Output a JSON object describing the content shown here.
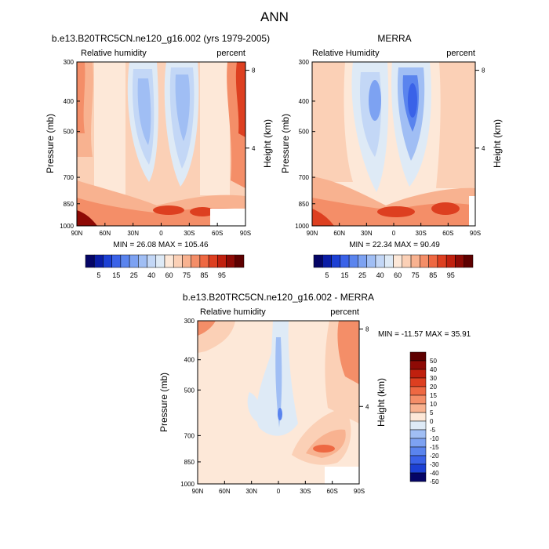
{
  "figure_title": "ANN",
  "chart_data": [
    {
      "type": "heatmap",
      "id": "model",
      "title": "b.e13.B20TRC5CN.ne120_g16.002 (yrs 1979-2005)",
      "left_label": "Relative humidity",
      "right_label": "percent",
      "xlabel": "",
      "ylabel": "Pressure (mb)",
      "y2label": "Height (km)",
      "x_ticks": [
        "90N",
        "60N",
        "30N",
        "0",
        "30S",
        "60S",
        "90S"
      ],
      "x_range": [
        90,
        -90
      ],
      "y_ticks": [
        300,
        400,
        500,
        700,
        850,
        1000
      ],
      "y_range_mb": [
        300,
        1000
      ],
      "height_ticks_km": [
        8,
        4
      ],
      "min_max": "MIN = 26.08  MAX = 105.46",
      "min": 26.08,
      "max": 105.46,
      "colorbar_labels": [
        "5",
        "15",
        "25",
        "40",
        "60",
        "75",
        "85",
        "95"
      ]
    },
    {
      "type": "heatmap",
      "id": "obs",
      "title": "MERRA",
      "left_label": "Relative Humidity",
      "right_label": "percent",
      "xlabel": "",
      "ylabel": "Pressure (mb)",
      "y2label": "Height (km)",
      "x_ticks": [
        "90N",
        "60N",
        "30N",
        "0",
        "30S",
        "60S",
        "90S"
      ],
      "x_range": [
        90,
        -90
      ],
      "y_ticks": [
        300,
        400,
        500,
        700,
        850,
        1000
      ],
      "y_range_mb": [
        300,
        1000
      ],
      "height_ticks_km": [
        8,
        4
      ],
      "min_max": "MIN = 22.34  MAX = 90.49",
      "min": 22.34,
      "max": 90.49,
      "colorbar_labels": [
        "5",
        "15",
        "25",
        "40",
        "60",
        "75",
        "85",
        "95"
      ]
    },
    {
      "type": "heatmap",
      "id": "diff",
      "title": "b.e13.B20TRC5CN.ne120_g16.002 - MERRA",
      "left_label": "Relative humidity",
      "right_label": "percent",
      "xlabel": "",
      "ylabel": "Pressure (mb)",
      "y2label": "Height (km)",
      "x_ticks": [
        "90N",
        "60N",
        "30N",
        "0",
        "30S",
        "60S",
        "90S"
      ],
      "x_range": [
        90,
        -90
      ],
      "y_ticks": [
        300,
        400,
        500,
        700,
        850,
        1000
      ],
      "y_range_mb": [
        300,
        1000
      ],
      "height_ticks_km": [
        8,
        4
      ],
      "min_max": "MIN = -11.57  MAX = 35.91",
      "min": -11.57,
      "max": 35.91,
      "colorbar_labels": [
        "50",
        "40",
        "30",
        "20",
        "15",
        "10",
        "5",
        "0",
        "-5",
        "-10",
        "-15",
        "-20",
        "-30",
        "-40",
        "-50"
      ]
    }
  ],
  "colors": {
    "abs_scale": [
      "#050566",
      "#0a1da6",
      "#1c40d4",
      "#3a62e8",
      "#5a84ee",
      "#7da2f2",
      "#a0bef4",
      "#c3d7f6",
      "#deeaf6",
      "#fde8d8",
      "#fbd0b6",
      "#f8b290",
      "#f48e68",
      "#ee6842",
      "#dd3f20",
      "#c0200e",
      "#8e0a05",
      "#5e0000"
    ],
    "diff_scale": [
      "#5e0000",
      "#8e0a05",
      "#c0200e",
      "#dd3f20",
      "#ee6842",
      "#f48e68",
      "#f8b290",
      "#fde8d8",
      "#deeaf6",
      "#a0bef4",
      "#7da2f2",
      "#5a84ee",
      "#3a62e8",
      "#1c40d4",
      "#050566"
    ]
  }
}
